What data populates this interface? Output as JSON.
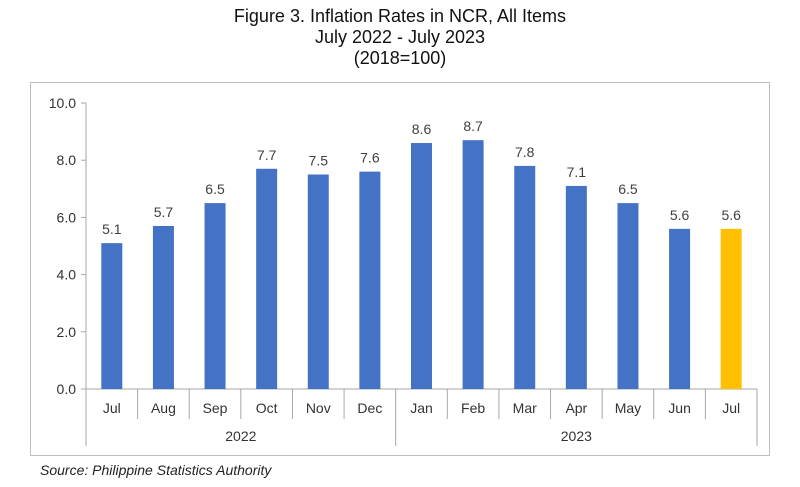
{
  "title": {
    "line1": "Figure 3. Inflation Rates in NCR, All Items",
    "line2": "July 2022 - July 2023",
    "line3": "(2018=100)"
  },
  "source": "Source: Philippine Statistics Authority",
  "chart_data": {
    "type": "bar",
    "title": "Figure 3. Inflation Rates in NCR, All Items",
    "subtitle": "July 2022 - July 2023 (2018=100)",
    "categories": [
      "Jul",
      "Aug",
      "Sep",
      "Oct",
      "Nov",
      "Dec",
      "Jan",
      "Feb",
      "Mar",
      "Apr",
      "May",
      "Jun",
      "Jul"
    ],
    "category_groups": [
      {
        "label": "2022",
        "count": 6
      },
      {
        "label": "2023",
        "count": 7
      }
    ],
    "values": [
      5.1,
      5.7,
      6.5,
      7.7,
      7.5,
      7.6,
      8.6,
      8.7,
      7.8,
      7.1,
      6.5,
      5.6,
      5.6
    ],
    "data_labels": [
      "5.1",
      "5.7",
      "6.5",
      "7.7",
      "7.5",
      "7.6",
      "8.6",
      "8.7",
      "7.8",
      "7.1",
      "6.5",
      "5.6",
      "5.6"
    ],
    "ylim": [
      0,
      10
    ],
    "y_ticks": [
      "0.0",
      "2.0",
      "4.0",
      "6.0",
      "8.0",
      "10.0"
    ],
    "grid": false,
    "legend": "none",
    "colors": {
      "bar": "#4472c4",
      "highlight": "#ffc000",
      "highlight_index": 12
    }
  }
}
